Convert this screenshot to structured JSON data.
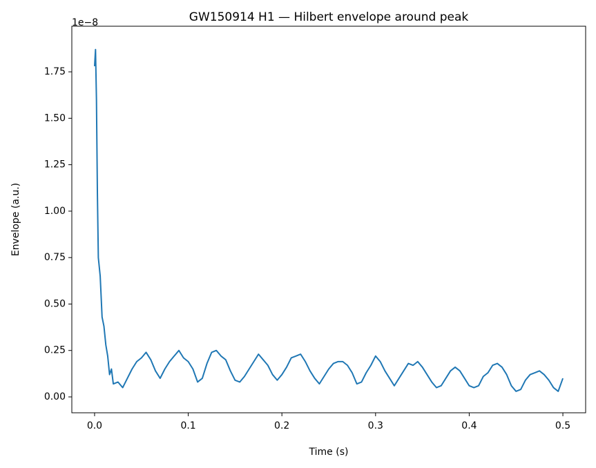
{
  "chart_data": {
    "type": "line",
    "title": "GW150914 H1 — Hilbert envelope around peak",
    "x_label": "Time (s)",
    "y_label": "Envelope (a.u.)",
    "y_offset_label": "1e−8",
    "xlim": [
      -0.0243,
      0.5243
    ],
    "ylim": [
      -0.0855,
      1.9955
    ],
    "xticks": [
      {
        "value": 0,
        "label": "0.0"
      },
      0.1,
      0.2,
      0.3,
      0.4,
      0.5
    ],
    "yticks": [
      {
        "value": 0,
        "label": "0.00"
      },
      0.25,
      {
        "value": 0.5,
        "label": "0.50"
      },
      0.75,
      {
        "value": 1,
        "label": "1.00"
      },
      1.25,
      {
        "value": 1.5,
        "label": "1.50"
      },
      1.75
    ],
    "series": [
      {
        "color": "#1f77b4",
        "x": [
          0,
          0.001,
          0.002,
          0.003,
          0.004,
          0.006,
          0.008,
          0.01,
          0.012,
          0.014,
          0.016,
          0.018,
          0.02,
          0.025,
          0.03,
          0.035,
          0.04,
          0.045,
          0.05,
          0.055,
          0.06,
          0.065,
          0.07,
          0.075,
          0.08,
          0.085,
          0.09,
          0.095,
          0.1,
          0.105,
          0.11,
          0.115,
          0.12,
          0.125,
          0.13,
          0.135,
          0.14,
          0.145,
          0.15,
          0.155,
          0.16,
          0.165,
          0.17,
          0.175,
          0.18,
          0.185,
          0.19,
          0.195,
          0.2,
          0.205,
          0.21,
          0.215,
          0.22,
          0.225,
          0.23,
          0.235,
          0.24,
          0.245,
          0.25,
          0.255,
          0.26,
          0.265,
          0.27,
          0.275,
          0.28,
          0.285,
          0.29,
          0.295,
          0.3,
          0.305,
          0.31,
          0.315,
          0.32,
          0.325,
          0.33,
          0.335,
          0.34,
          0.345,
          0.35,
          0.355,
          0.36,
          0.365,
          0.37,
          0.375,
          0.38,
          0.385,
          0.39,
          0.395,
          0.4,
          0.405,
          0.41,
          0.415,
          0.42,
          0.425,
          0.43,
          0.435,
          0.44,
          0.445,
          0.45,
          0.455,
          0.46,
          0.465,
          0.47,
          0.475,
          0.48,
          0.485,
          0.49,
          0.495,
          0.5
        ],
        "values": [
          1.78,
          1.87,
          1.6,
          1.1,
          0.75,
          0.65,
          0.43,
          0.38,
          0.28,
          0.22,
          0.12,
          0.15,
          0.07,
          0.08,
          0.05,
          0.1,
          0.15,
          0.19,
          0.21,
          0.24,
          0.2,
          0.14,
          0.1,
          0.15,
          0.19,
          0.22,
          0.25,
          0.21,
          0.19,
          0.15,
          0.08,
          0.1,
          0.18,
          0.24,
          0.25,
          0.22,
          0.2,
          0.14,
          0.09,
          0.08,
          0.11,
          0.15,
          0.19,
          0.23,
          0.2,
          0.17,
          0.12,
          0.09,
          0.12,
          0.16,
          0.21,
          0.22,
          0.23,
          0.19,
          0.14,
          0.1,
          0.07,
          0.11,
          0.15,
          0.18,
          0.19,
          0.19,
          0.17,
          0.13,
          0.07,
          0.08,
          0.13,
          0.17,
          0.22,
          0.19,
          0.14,
          0.1,
          0.06,
          0.1,
          0.14,
          0.18,
          0.17,
          0.19,
          0.16,
          0.12,
          0.08,
          0.05,
          0.06,
          0.1,
          0.14,
          0.16,
          0.14,
          0.1,
          0.06,
          0.05,
          0.06,
          0.11,
          0.13,
          0.17,
          0.18,
          0.16,
          0.12,
          0.06,
          0.03,
          0.04,
          0.09,
          0.12,
          0.13,
          0.14,
          0.12,
          0.09,
          0.05,
          0.03,
          0.1
        ]
      }
    ]
  }
}
